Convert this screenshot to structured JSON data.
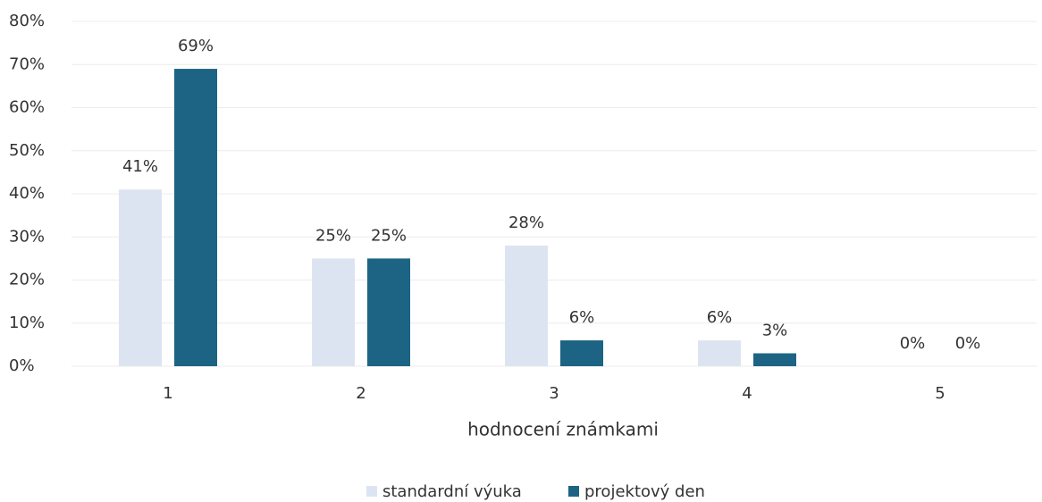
{
  "chart_data": {
    "type": "bar",
    "x_label": "hodnocení známkami",
    "categories": [
      "1",
      "2",
      "3",
      "4",
      "5"
    ],
    "series": [
      {
        "name": "standardní výuka",
        "color": "#dde4f1",
        "values": [
          41,
          25,
          28,
          6,
          0
        ],
        "value_labels": [
          "41%",
          "25%",
          "28%",
          "6%",
          "0%"
        ]
      },
      {
        "name": "projektový den",
        "color": "#1d6484",
        "values": [
          69,
          25,
          6,
          3,
          0
        ],
        "value_labels": [
          "69%",
          "25%",
          "6%",
          "3%",
          "0%"
        ]
      }
    ],
    "ylim": [
      0,
      80
    ],
    "yticks": [
      {
        "value": 0,
        "label": "0%"
      },
      {
        "value": 10,
        "label": "10%"
      },
      {
        "value": 20,
        "label": "20%"
      },
      {
        "value": 30,
        "label": "30%"
      },
      {
        "value": 40,
        "label": "40%"
      },
      {
        "value": 50,
        "label": "50%"
      },
      {
        "value": 60,
        "label": "60%"
      },
      {
        "value": 70,
        "label": "70%"
      },
      {
        "value": 80,
        "label": "80%"
      }
    ],
    "grid": true,
    "legend": "bottom"
  }
}
